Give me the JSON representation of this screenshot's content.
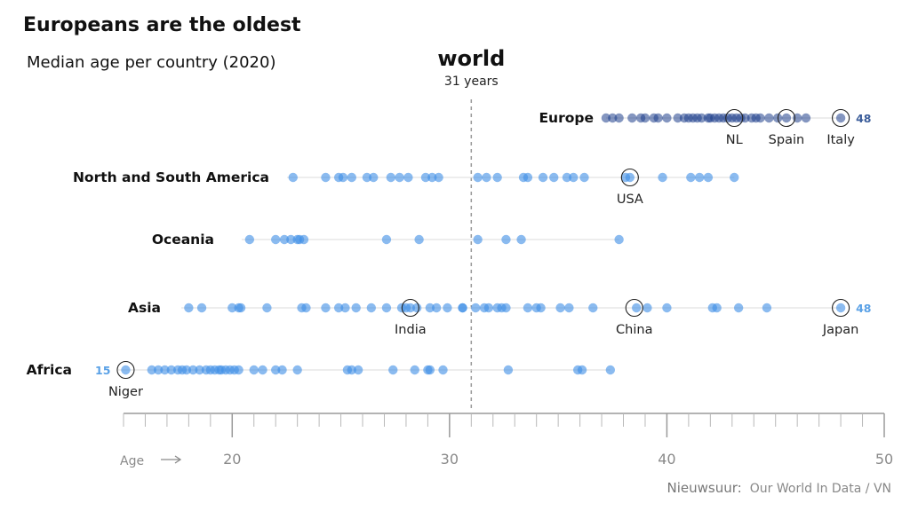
{
  "chart_data": {
    "type": "scatter",
    "title": "Europeans are the oldest",
    "subtitle": "Median age per country (2020)",
    "xlabel": "Age",
    "xlim": [
      15,
      50
    ],
    "major_ticks": [
      20,
      30,
      40,
      50
    ],
    "minor_tick_step": 1,
    "reference_line": {
      "value": 31,
      "label": "world",
      "sublabel": "31 years"
    },
    "source": "Nieuwsuur:",
    "source_detail": "Our World In Data / VN",
    "colors": {
      "default_dot": "#3d8ee6",
      "europe_dot": "#1f3f8c",
      "dot_outline": "#222222",
      "line": "#e2e2e2",
      "europe_extreme": "#3b5d9a",
      "default_extreme": "#5aa1e6"
    },
    "series": [
      {
        "name": "Europe",
        "dark": true,
        "values": [
          37.2,
          37.5,
          37.8,
          38.4,
          38.8,
          39.0,
          39.4,
          39.6,
          40.0,
          40.5,
          40.8,
          41.0,
          41.2,
          41.4,
          41.6,
          41.9,
          42.0,
          42.2,
          42.4,
          42.6,
          42.8,
          43.0,
          43.2,
          43.4,
          43.6,
          43.9,
          44.1,
          44.3,
          44.7,
          45.1,
          45.5,
          46.0,
          46.4,
          48.0
        ],
        "extreme": "48",
        "labeled": [
          {
            "name": "NL",
            "value": 43.1
          },
          {
            "name": "Spain",
            "value": 45.5
          },
          {
            "name": "Italy",
            "value": 48.0
          }
        ]
      },
      {
        "name": "North and South America",
        "values": [
          22.8,
          24.3,
          24.9,
          25.1,
          25.5,
          26.2,
          26.5,
          27.3,
          27.7,
          28.1,
          28.9,
          29.2,
          29.5,
          31.3,
          31.7,
          32.2,
          33.4,
          33.6,
          34.3,
          34.8,
          35.4,
          35.7,
          36.2,
          38.1,
          38.3,
          39.8,
          41.1,
          41.5,
          41.9,
          43.1
        ],
        "labeled": [
          {
            "name": "USA",
            "value": 38.3
          }
        ]
      },
      {
        "name": "Oceania",
        "values": [
          20.8,
          22.0,
          22.4,
          22.7,
          23.0,
          23.1,
          23.3,
          27.1,
          28.6,
          31.3,
          32.6,
          33.3,
          37.8
        ],
        "labeled": []
      },
      {
        "name": "Asia",
        "values": [
          18.0,
          18.6,
          20.0,
          20.3,
          20.4,
          21.6,
          23.2,
          23.4,
          24.3,
          24.9,
          25.2,
          25.7,
          26.4,
          27.1,
          27.8,
          28.0,
          28.2,
          28.5,
          29.1,
          29.4,
          29.9,
          30.6,
          30.6,
          31.2,
          31.6,
          31.8,
          32.2,
          32.4,
          32.6,
          33.6,
          34.0,
          34.2,
          35.1,
          35.5,
          36.6,
          38.6,
          39.1,
          40.0,
          42.1,
          42.3,
          43.3,
          44.6,
          48.0
        ],
        "extreme": "48",
        "labeled": [
          {
            "name": "India",
            "value": 28.2
          },
          {
            "name": "China",
            "value": 38.5
          },
          {
            "name": "Japan",
            "value": 48.0
          }
        ]
      },
      {
        "name": "Africa",
        "values": [
          15.1,
          16.3,
          16.6,
          16.9,
          17.2,
          17.5,
          17.7,
          17.9,
          18.2,
          18.5,
          18.8,
          19.0,
          19.2,
          19.4,
          19.5,
          19.7,
          19.9,
          20.1,
          20.3,
          21.0,
          21.4,
          22.0,
          22.3,
          23.0,
          25.3,
          25.5,
          25.8,
          27.4,
          28.4,
          29.0,
          29.1,
          29.7,
          32.7,
          35.9,
          36.1,
          37.4
        ],
        "extreme": "15",
        "labeled": [
          {
            "name": "Niger",
            "value": 15.1
          }
        ]
      }
    ]
  }
}
